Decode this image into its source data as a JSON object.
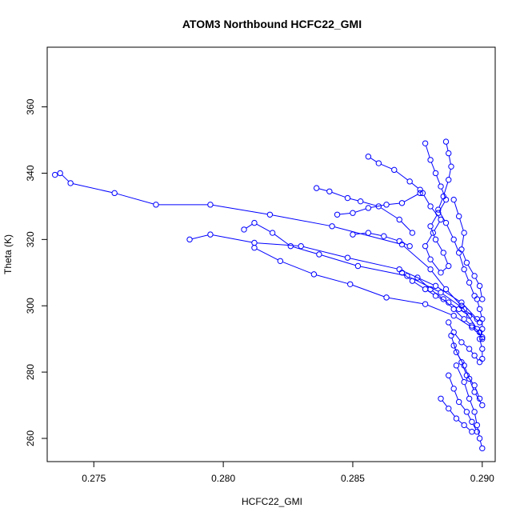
{
  "chart_data": {
    "type": "scatter",
    "title": "ATOM3 Northbound HCFC22_GMI",
    "xlabel": "HCFC22_GMI",
    "ylabel": "Theta (K)",
    "xlim": [
      0.2732,
      0.2905
    ],
    "ylim": [
      253,
      378
    ],
    "xticks": [
      "0.275",
      "0.280",
      "0.285",
      "0.290"
    ],
    "yticks": [
      "260",
      "280",
      "300",
      "320",
      "340",
      "360"
    ],
    "marker": "open-circle",
    "connect_points": true,
    "color": "#0000ff",
    "grid": false,
    "series": [
      {
        "x": [
          0.2735,
          0.2737,
          0.2741,
          0.2758,
          0.2774,
          0.2795,
          0.2818,
          0.2842,
          0.2869,
          0.288,
          0.2886,
          0.2892,
          0.2898,
          0.29
        ],
        "y": [
          339.5,
          340.0,
          337.0,
          334.0,
          330.5,
          330.5,
          327.5,
          324.0,
          318.5,
          311.0,
          305.0,
          300.0,
          293.0,
          290.0
        ]
      },
      {
        "x": [
          0.2787,
          0.2795,
          0.2812,
          0.283,
          0.2848,
          0.2868,
          0.2882,
          0.2892,
          0.2898
        ],
        "y": [
          320.0,
          321.5,
          319.0,
          318.0,
          314.5,
          311.0,
          306.0,
          301.0,
          296.0
        ]
      },
      {
        "x": [
          0.2808,
          0.2812,
          0.2819,
          0.2826,
          0.2837,
          0.2852,
          0.2871,
          0.2884,
          0.2893,
          0.2899
        ],
        "y": [
          323.0,
          325.0,
          322.0,
          318.0,
          315.5,
          312.0,
          309.0,
          304.0,
          299.0,
          295.0
        ]
      },
      {
        "x": [
          0.2812,
          0.2822,
          0.2835,
          0.2849,
          0.2863,
          0.2878,
          0.2889,
          0.2896,
          0.29
        ],
        "y": [
          317.5,
          313.5,
          309.5,
          306.5,
          302.5,
          300.5,
          297.0,
          293.5,
          290.5
        ]
      },
      {
        "x": [
          0.2836,
          0.2841,
          0.2848,
          0.2853,
          0.286,
          0.2868,
          0.2873
        ],
        "y": [
          335.5,
          334.5,
          332.5,
          331.5,
          330.0,
          326.0,
          322.0
        ]
      },
      {
        "x": [
          0.2844,
          0.285,
          0.2856,
          0.2863,
          0.2869,
          0.2876
        ],
        "y": [
          327.5,
          328.0,
          329.5,
          330.5,
          331.0,
          334.0
        ]
      },
      {
        "x": [
          0.2856,
          0.286,
          0.2866,
          0.2872,
          0.2876
        ],
        "y": [
          345.0,
          343.0,
          341.0,
          337.5,
          335.0
        ]
      },
      {
        "x": [
          0.285,
          0.2856,
          0.2862,
          0.2868,
          0.2872
        ],
        "y": [
          321.5,
          322.0,
          321.0,
          319.5,
          318.0
        ]
      },
      {
        "x": [
          0.2878,
          0.288,
          0.2882,
          0.2884,
          0.2886,
          0.2883,
          0.288,
          0.2882,
          0.2885,
          0.2887,
          0.2884,
          0.288,
          0.2878,
          0.2881,
          0.2884,
          0.288,
          0.2877
        ],
        "y": [
          349.0,
          344.0,
          340.0,
          336.0,
          332.0,
          328.0,
          324.0,
          320.0,
          316.0,
          312.0,
          310.0,
          314.0,
          318.0,
          322.0,
          326.0,
          330.0,
          334.0
        ]
      },
      {
        "x": [
          0.2886,
          0.2887,
          0.2888,
          0.2887,
          0.2885,
          0.2883,
          0.2886,
          0.2889,
          0.2891,
          0.2893,
          0.2895,
          0.2897
        ],
        "y": [
          349.5,
          346.0,
          342.0,
          338.0,
          333.0,
          329.0,
          325.0,
          320.0,
          316.0,
          311.0,
          307.0,
          303.0
        ]
      },
      {
        "x": [
          0.2889,
          0.2891,
          0.2893,
          0.2892,
          0.2894,
          0.2897,
          0.2899,
          0.29
        ],
        "y": [
          332.0,
          327.0,
          322.0,
          317.0,
          313.0,
          309.0,
          306.0,
          302.0
        ]
      },
      {
        "x": [
          0.2869,
          0.2873,
          0.2878,
          0.2882,
          0.2887,
          0.2891,
          0.2895
        ],
        "y": [
          310.0,
          307.5,
          305.0,
          303.0,
          301.0,
          299.0,
          297.0
        ]
      },
      {
        "x": [
          0.2875,
          0.288,
          0.2885,
          0.2889,
          0.2893,
          0.2896,
          0.2899
        ],
        "y": [
          308.5,
          305.0,
          302.0,
          299.0,
          296.0,
          294.0,
          292.0
        ]
      },
      {
        "x": [
          0.2887,
          0.2889,
          0.2892,
          0.2895,
          0.2897,
          0.2899
        ],
        "y": [
          295.0,
          292.0,
          289.0,
          287.0,
          285.0,
          283.0
        ]
      },
      {
        "x": [
          0.2888,
          0.289,
          0.2893,
          0.2895,
          0.2897,
          0.29
        ],
        "y": [
          291.0,
          286.0,
          282.0,
          278.0,
          274.0,
          270.0
        ]
      },
      {
        "x": [
          0.2889,
          0.2892,
          0.2894,
          0.2897,
          0.2899
        ],
        "y": [
          288.0,
          283.0,
          279.0,
          276.0,
          272.0
        ]
      },
      {
        "x": [
          0.289,
          0.2893,
          0.2895,
          0.2897,
          0.2898,
          0.2899,
          0.29
        ],
        "y": [
          282.0,
          277.0,
          272.0,
          268.0,
          264.0,
          260.0,
          257.0
        ]
      },
      {
        "x": [
          0.2887,
          0.2889,
          0.2891,
          0.2894,
          0.2896,
          0.2898
        ],
        "y": [
          279.0,
          275.0,
          271.0,
          268.0,
          265.0,
          262.0
        ]
      },
      {
        "x": [
          0.2884,
          0.2887,
          0.289,
          0.2893,
          0.2896
        ],
        "y": [
          272.0,
          269.0,
          266.0,
          264.0,
          262.0
        ]
      },
      {
        "x": [
          0.2898,
          0.2899,
          0.29,
          0.29,
          0.2899,
          0.29,
          0.29
        ],
        "y": [
          302.0,
          299.0,
          296.0,
          293.0,
          290.0,
          287.0,
          284.0
        ]
      }
    ]
  }
}
